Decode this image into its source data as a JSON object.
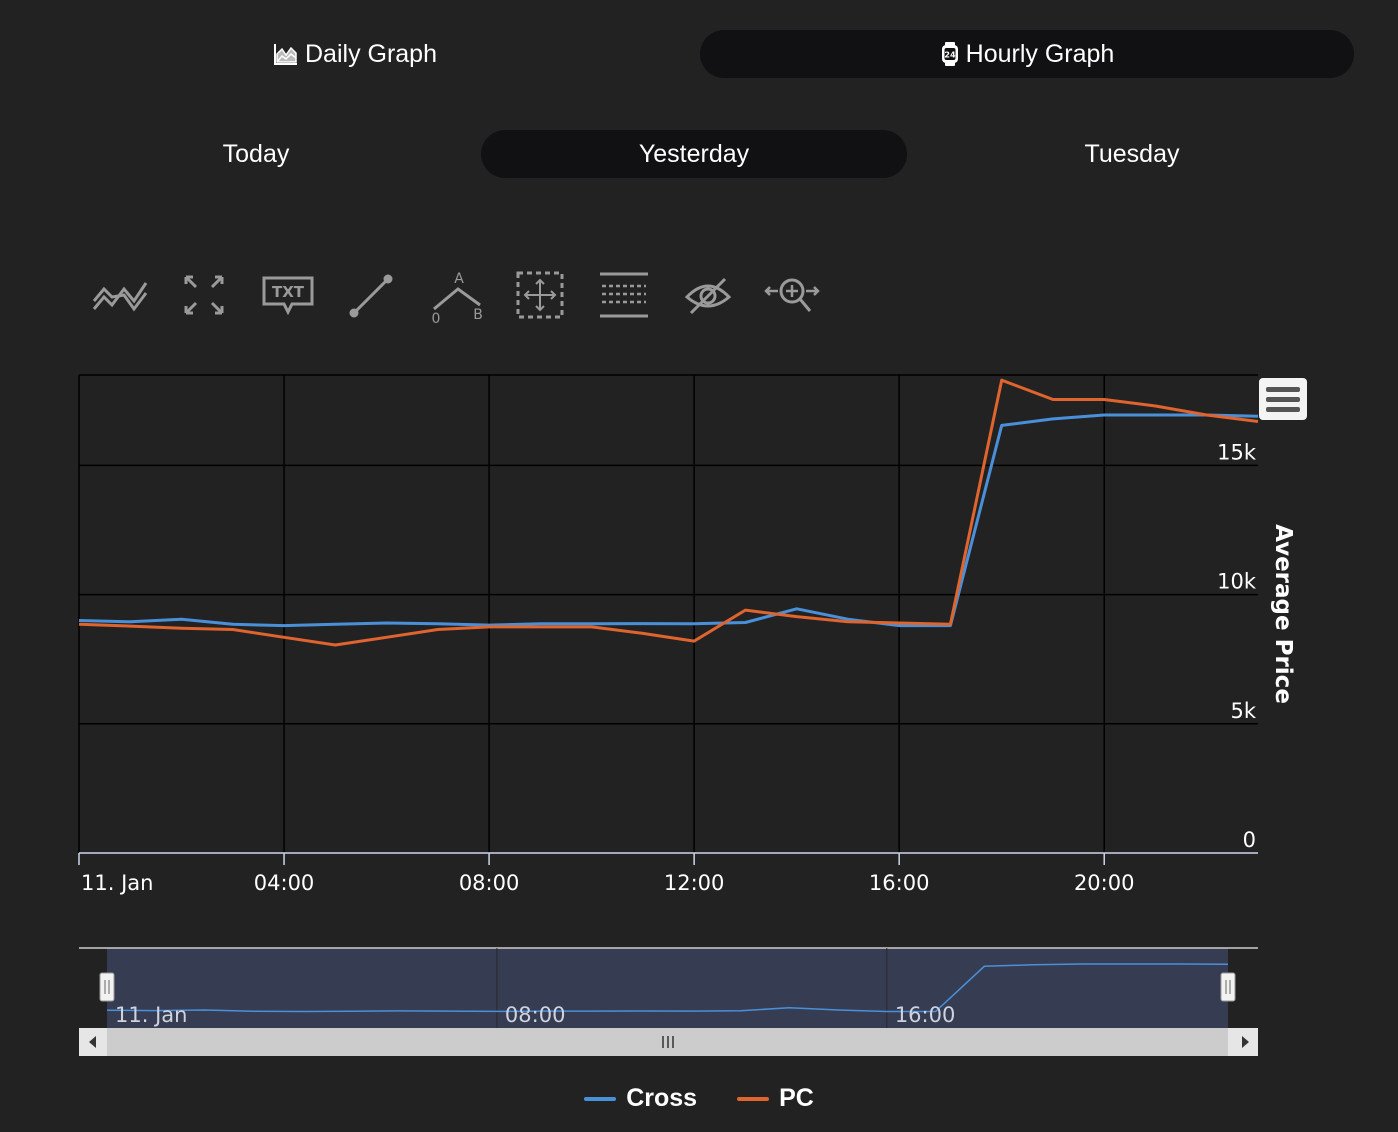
{
  "graph_tabs": [
    {
      "label": "Daily Graph",
      "icon": "area-chart-icon",
      "active": false
    },
    {
      "label": "Hourly Graph",
      "icon": "clock-24-icon",
      "active": true
    }
  ],
  "day_tabs": [
    {
      "label": "Today",
      "active": false
    },
    {
      "label": "Yesterday",
      "active": true
    },
    {
      "label": "Tuesday",
      "active": false
    }
  ],
  "toolbar": {
    "tools": [
      "indicators-icon",
      "fullscreen-icon",
      "text-annotation-icon",
      "line-draw-icon",
      "measure-angle-icon",
      "pan-select-icon",
      "horizontal-lines-icon",
      "hide-annotations-icon",
      "zoom-icon"
    ],
    "angle_labels": {
      "a": "A",
      "b": "B",
      "origin": "0"
    },
    "text_tool_label": "TXT"
  },
  "chart_data": {
    "type": "line",
    "title": "",
    "ylabel": "Average Price",
    "ylim": [
      0,
      18500
    ],
    "yticks": [
      0,
      5000,
      10000,
      15000
    ],
    "ytick_labels": [
      "0",
      "5k",
      "10k",
      "15k"
    ],
    "xlim": [
      0,
      23
    ],
    "xticks": [
      0,
      4,
      8,
      12,
      16,
      20
    ],
    "xtick_labels": [
      "11. Jan",
      "04:00",
      "08:00",
      "12:00",
      "16:00",
      "20:00"
    ],
    "grid": true,
    "legend_position": "bottom-center",
    "x": [
      0,
      1,
      2,
      3,
      4,
      5,
      6,
      7,
      8,
      9,
      10,
      11,
      12,
      13,
      14,
      15,
      16,
      17,
      18,
      19,
      20,
      21,
      22,
      23
    ],
    "series": [
      {
        "name": "Cross",
        "color": "#4a90d9",
        "values": [
          9000,
          8950,
          9050,
          8850,
          8800,
          8850,
          8900,
          8870,
          8820,
          8870,
          8870,
          8880,
          8870,
          8920,
          9450,
          9050,
          8800,
          8800,
          16550,
          16800,
          16950,
          16950,
          16950,
          16900
        ]
      },
      {
        "name": "PC",
        "color": "#e0642e",
        "values": [
          8850,
          8780,
          8700,
          8650,
          8350,
          8050,
          8350,
          8650,
          8750,
          8750,
          8750,
          8500,
          8200,
          9400,
          9150,
          8950,
          8900,
          8850,
          18300,
          17550,
          17550,
          17300,
          16950,
          16700
        ]
      }
    ],
    "navigator": {
      "xtick_labels": [
        "11. Jan",
        "08:00",
        "16:00"
      ]
    }
  },
  "colors": {
    "background": "#222223",
    "plot_background": "#222223",
    "grid": "#000000",
    "axis_text": "#ffffff",
    "active_tab": "#111113",
    "navigator_mask": "#363c52",
    "scrollbar": "#cccccc"
  }
}
